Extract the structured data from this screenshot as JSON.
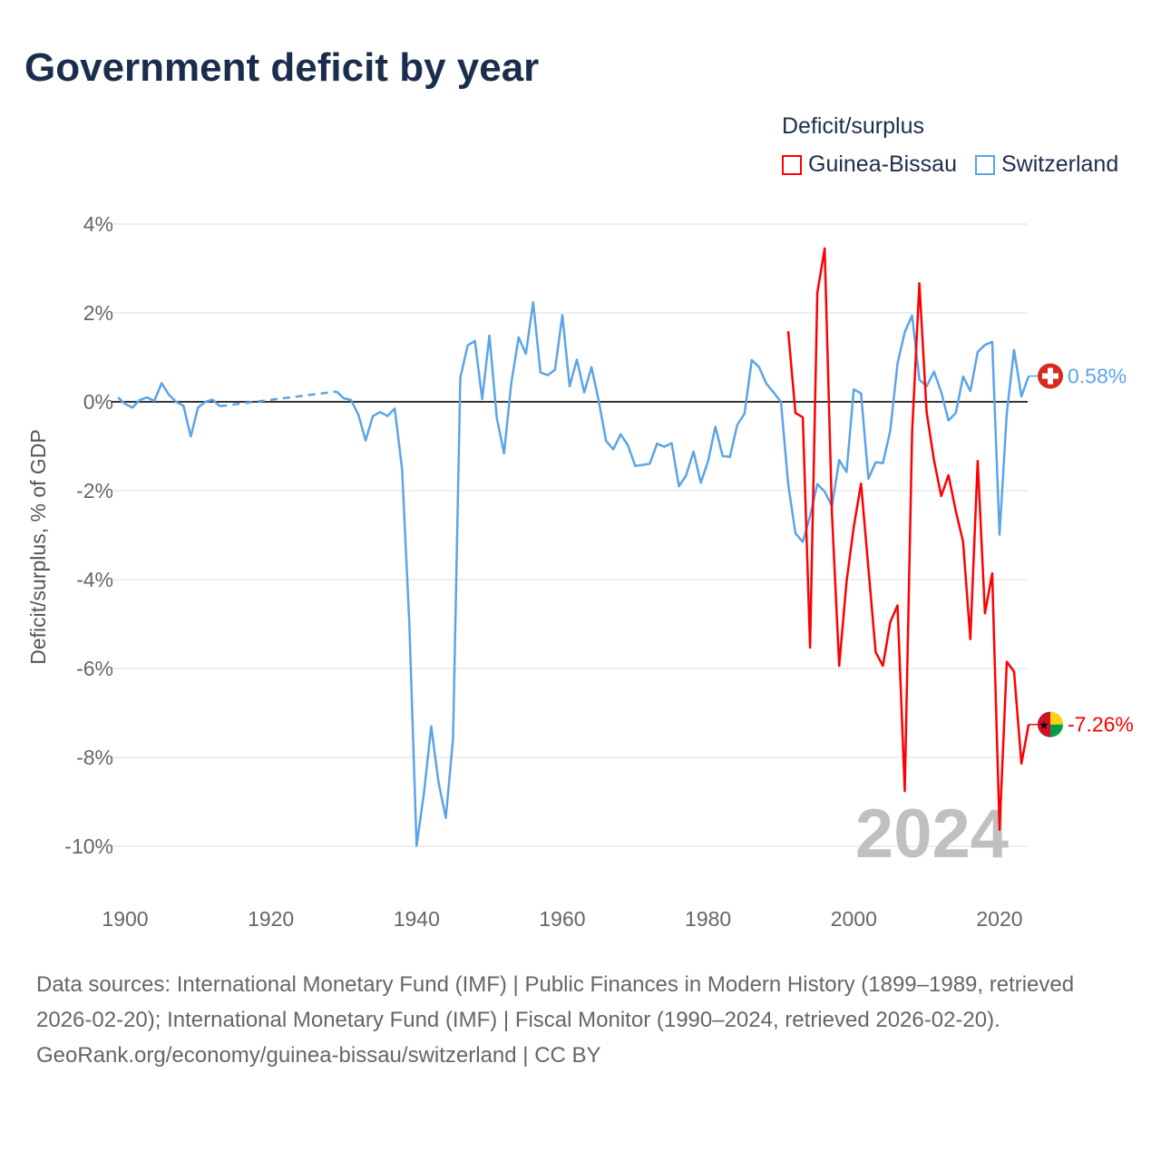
{
  "title": "Government deficit by year",
  "legend": {
    "title": "Deficit/surplus",
    "items": [
      {
        "name": "Guinea-Bissau",
        "color": "#ff0000"
      },
      {
        "name": "Switzerland",
        "color": "#5ba4e8"
      }
    ]
  },
  "year_watermark": "2024",
  "footer": {
    "sources": "Data sources: International Monetary Fund (IMF) | Public Finances in Modern History (1899–1989, retrieved 2026-02-20); International Monetary Fund (IMF) | Fiscal Monitor (1990–2024, retrieved 2026-02-20).",
    "credit": "GeoRank.org/economy/guinea-bissau/switzerland | CC BY"
  },
  "chart_data": {
    "type": "line",
    "title": "Government deficit by year",
    "ylabel": "Deficit/surplus, % of GDP",
    "xlabel": "",
    "xlim": [
      1899,
      2024
    ],
    "ylim": [
      -11,
      4.2
    ],
    "xticks": [
      1900,
      1920,
      1940,
      1960,
      1980,
      2000,
      2020
    ],
    "xtick_labels": [
      "1900",
      "1920",
      "1940",
      "1960",
      "1980",
      "2000",
      "2020"
    ],
    "yticks": [
      4,
      2,
      0,
      -2,
      -4,
      -6,
      -8,
      -10
    ],
    "ytick_labels": [
      "4%",
      "2%",
      "0%",
      "-2%",
      "-4%",
      "-6%",
      "-8%",
      "-10%"
    ],
    "grid": true,
    "legend_position": "top-right",
    "series": [
      {
        "name": "Switzerland",
        "color": "#5ba4e8",
        "end_label": "0.58%",
        "flag": "switzerland-flag",
        "points": [
          [
            1899,
            0.1
          ],
          [
            1900,
            -0.05
          ],
          [
            1901,
            -0.13
          ],
          [
            1902,
            0.04
          ],
          [
            1903,
            0.1
          ],
          [
            1904,
            0.02
          ],
          [
            1905,
            0.42
          ],
          [
            1906,
            0.16
          ],
          [
            1907,
            0.0
          ],
          [
            1908,
            -0.09
          ],
          [
            1909,
            -0.78
          ],
          [
            1910,
            -0.13
          ],
          [
            1911,
            0.0
          ],
          [
            1912,
            0.05
          ],
          [
            1913,
            -0.1
          ],
          [
            1929,
            0.23
          ],
          [
            1930,
            0.08
          ],
          [
            1931,
            0.04
          ],
          [
            1932,
            -0.29
          ],
          [
            1933,
            -0.87
          ],
          [
            1934,
            -0.32
          ],
          [
            1935,
            -0.23
          ],
          [
            1936,
            -0.32
          ],
          [
            1937,
            -0.15
          ],
          [
            1938,
            -1.52
          ],
          [
            1939,
            -4.99
          ],
          [
            1940,
            -9.99
          ],
          [
            1941,
            -8.8
          ],
          [
            1942,
            -7.3
          ],
          [
            1943,
            -8.55
          ],
          [
            1944,
            -9.36
          ],
          [
            1945,
            -7.58
          ],
          [
            1946,
            0.54
          ],
          [
            1947,
            1.27
          ],
          [
            1948,
            1.37
          ],
          [
            1949,
            0.06
          ],
          [
            1950,
            1.49
          ],
          [
            1951,
            -0.36
          ],
          [
            1952,
            -1.16
          ],
          [
            1953,
            0.42
          ],
          [
            1954,
            1.45
          ],
          [
            1955,
            1.08
          ],
          [
            1956,
            2.24
          ],
          [
            1957,
            0.66
          ],
          [
            1958,
            0.6
          ],
          [
            1959,
            0.72
          ],
          [
            1960,
            1.95
          ],
          [
            1961,
            0.35
          ],
          [
            1962,
            0.95
          ],
          [
            1963,
            0.21
          ],
          [
            1964,
            0.78
          ],
          [
            1965,
            0.02
          ],
          [
            1966,
            -0.88
          ],
          [
            1967,
            -1.07
          ],
          [
            1968,
            -0.73
          ],
          [
            1969,
            -0.98
          ],
          [
            1970,
            -1.44
          ],
          [
            1971,
            -1.42
          ],
          [
            1972,
            -1.39
          ],
          [
            1973,
            -0.94
          ],
          [
            1974,
            -1.01
          ],
          [
            1975,
            -0.93
          ],
          [
            1976,
            -1.9
          ],
          [
            1977,
            -1.65
          ],
          [
            1978,
            -1.12
          ],
          [
            1979,
            -1.82
          ],
          [
            1980,
            -1.34
          ],
          [
            1981,
            -0.56
          ],
          [
            1982,
            -1.22
          ],
          [
            1983,
            -1.24
          ],
          [
            1984,
            -0.52
          ],
          [
            1985,
            -0.27
          ],
          [
            1986,
            0.94
          ],
          [
            1987,
            0.78
          ],
          [
            1988,
            0.41
          ],
          [
            1989,
            0.21
          ],
          [
            1990,
            0.0
          ],
          [
            1991,
            -1.86
          ],
          [
            1992,
            -2.96
          ],
          [
            1993,
            -3.15
          ],
          [
            1994,
            -2.57
          ],
          [
            1995,
            -1.85
          ],
          [
            1996,
            -2.02
          ],
          [
            1997,
            -2.35
          ],
          [
            1998,
            -1.31
          ],
          [
            1999,
            -1.58
          ],
          [
            2000,
            0.28
          ],
          [
            2001,
            0.19
          ],
          [
            2002,
            -1.73
          ],
          [
            2003,
            -1.36
          ],
          [
            2004,
            -1.38
          ],
          [
            2005,
            -0.65
          ],
          [
            2006,
            0.86
          ],
          [
            2007,
            1.57
          ],
          [
            2008,
            1.94
          ],
          [
            2009,
            0.5
          ],
          [
            2010,
            0.35
          ],
          [
            2011,
            0.68
          ],
          [
            2012,
            0.22
          ],
          [
            2013,
            -0.42
          ],
          [
            2014,
            -0.25
          ],
          [
            2015,
            0.57
          ],
          [
            2016,
            0.24
          ],
          [
            2017,
            1.12
          ],
          [
            2018,
            1.28
          ],
          [
            2019,
            1.35
          ],
          [
            2020,
            -2.99
          ],
          [
            2021,
            -0.25
          ],
          [
            2022,
            1.17
          ],
          [
            2023,
            0.12
          ],
          [
            2024,
            0.58
          ]
        ],
        "gaps": [
          [
            1913,
            1929
          ]
        ]
      },
      {
        "name": "Guinea-Bissau",
        "color": "#ff0000",
        "end_label": "-7.26%",
        "flag": "guinea-bissau-flag",
        "points": [
          [
            1991,
            1.59
          ],
          [
            1992,
            -0.25
          ],
          [
            1993,
            -0.35
          ],
          [
            1994,
            -5.53
          ],
          [
            1995,
            2.45
          ],
          [
            1996,
            3.45
          ],
          [
            1997,
            -2.5
          ],
          [
            1998,
            -5.94
          ],
          [
            1999,
            -4.05
          ],
          [
            2000,
            -2.81
          ],
          [
            2001,
            -1.84
          ],
          [
            2002,
            -3.74
          ],
          [
            2003,
            -5.63
          ],
          [
            2004,
            -5.94
          ],
          [
            2005,
            -4.96
          ],
          [
            2006,
            -4.58
          ],
          [
            2007,
            -8.76
          ],
          [
            2008,
            -0.69
          ],
          [
            2009,
            2.67
          ],
          [
            2010,
            -0.23
          ],
          [
            2011,
            -1.31
          ],
          [
            2012,
            -2.12
          ],
          [
            2013,
            -1.65
          ],
          [
            2014,
            -2.46
          ],
          [
            2015,
            -3.15
          ],
          [
            2016,
            -5.34
          ],
          [
            2017,
            -1.33
          ],
          [
            2018,
            -4.76
          ],
          [
            2019,
            -3.86
          ],
          [
            2020,
            -9.63
          ],
          [
            2021,
            -5.85
          ],
          [
            2022,
            -6.07
          ],
          [
            2023,
            -8.14
          ],
          [
            2024,
            -7.26
          ]
        ],
        "gaps": []
      }
    ]
  }
}
